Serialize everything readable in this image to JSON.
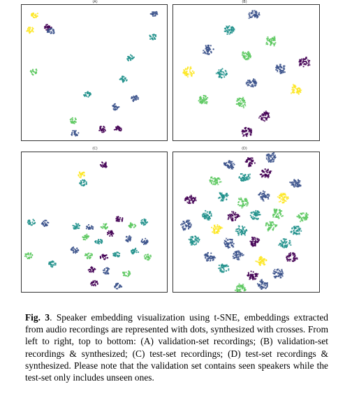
{
  "panels": [
    {
      "id": "A",
      "label": "(A)",
      "markers": "dots"
    },
    {
      "id": "B",
      "label": "(B)",
      "markers": "dots+crosses"
    },
    {
      "id": "C",
      "label": "(C)",
      "markers": "dots"
    },
    {
      "id": "D",
      "label": "(D)",
      "markers": "dots+crosses"
    }
  ],
  "colormap": [
    "#440154",
    "#3b528b",
    "#21918c",
    "#5ec962",
    "#fde725"
  ],
  "caption": {
    "fig_label": "Fig. 3",
    "text": ". Speaker embedding visualization using t-SNE, embeddings extracted from audio recordings are represented with dots, synthesized with crosses. From left to right, top to bottom: (A) validation-set recordings; (B) validation-set recordings & synthesized; (C) test-set recordings; (D) test-set recordings & synthesized. Please note that the validation set contains seen speakers while the test-set only includes unseen ones."
  }
}
